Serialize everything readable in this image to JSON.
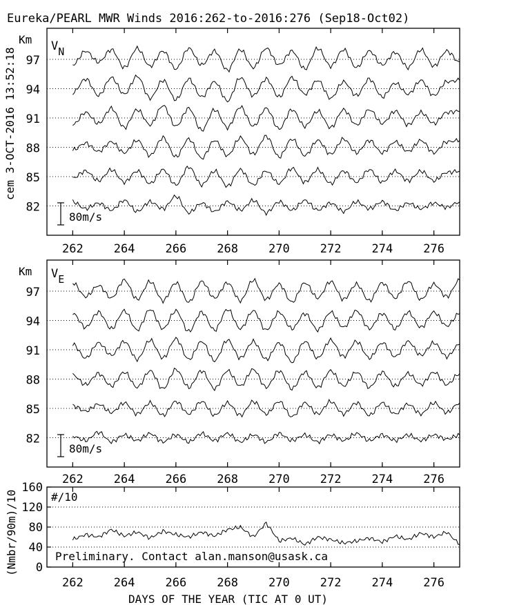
{
  "title": "Eureka/PEARL MWR Winds 2016:262-to-2016:276 (Sep18-Oct02)",
  "side_label": "cem 3-OCT-2016 13:52:18",
  "xlabel": "DAYS OF THE YEAR (TIC AT 0 UT)",
  "colors": {
    "line": "#000000",
    "background": "#ffffff"
  },
  "chart_data": [
    {
      "type": "line",
      "panel": "VN",
      "symbol": "V",
      "subscript": "N",
      "unit_label": "Km",
      "scale_label": "80m/s",
      "x_ticks": [
        262,
        264,
        266,
        268,
        270,
        272,
        274,
        276
      ],
      "xlim": [
        261,
        277
      ],
      "heights_km": [
        97,
        94,
        91,
        88,
        85,
        82
      ],
      "grid": "dotted baseline per height",
      "series": [
        {
          "height": 97,
          "x": [
            262.0,
            262.5,
            263.0,
            263.5,
            264.0,
            264.5,
            265.0,
            265.5,
            266.0,
            266.5,
            267.0,
            267.5,
            268.0,
            268.5,
            269.0,
            269.5,
            270.0,
            270.5,
            271.0,
            271.5,
            272.0,
            272.5,
            273.0,
            273.5,
            274.0,
            274.5,
            275.0,
            275.5,
            276.0,
            276.5,
            277.0
          ],
          "values_ms": [
            -20,
            30,
            -10,
            35,
            -30,
            40,
            -25,
            30,
            -35,
            40,
            -20,
            30,
            -40,
            35,
            -30,
            40,
            -20,
            30,
            -35,
            40,
            -25,
            35,
            -30,
            30,
            -20,
            25,
            -30,
            35,
            -25,
            30,
            -10
          ]
        },
        {
          "height": 94,
          "x": [
            262.0,
            262.5,
            263.0,
            263.5,
            264.0,
            264.5,
            265.0,
            265.5,
            266.0,
            266.5,
            267.0,
            267.5,
            268.0,
            268.5,
            269.0,
            269.5,
            270.0,
            270.5,
            271.0,
            271.5,
            272.0,
            272.5,
            273.0,
            273.5,
            274.0,
            274.5,
            275.0,
            275.5,
            276.0,
            276.5,
            277.0
          ],
          "values_ms": [
            -15,
            35,
            -25,
            40,
            -20,
            45,
            -35,
            30,
            -40,
            35,
            -30,
            25,
            -45,
            40,
            -25,
            35,
            -30,
            40,
            -20,
            30,
            -35,
            25,
            -25,
            35,
            -30,
            20,
            -20,
            30,
            -25,
            25,
            30
          ]
        },
        {
          "height": 91,
          "x": [
            262.0,
            262.5,
            263.0,
            263.5,
            264.0,
            264.5,
            265.0,
            265.5,
            266.0,
            266.5,
            267.0,
            267.5,
            268.0,
            268.5,
            269.0,
            269.5,
            270.0,
            270.5,
            271.0,
            271.5,
            272.0,
            272.5,
            273.0,
            273.5,
            274.0,
            274.5,
            275.0,
            275.5,
            276.0,
            276.5,
            277.0
          ],
          "values_ms": [
            -25,
            20,
            -20,
            35,
            -35,
            30,
            -25,
            45,
            -30,
            35,
            -45,
            30,
            -35,
            40,
            -30,
            35,
            -40,
            30,
            -30,
            25,
            -35,
            30,
            -25,
            30,
            -20,
            25,
            -25,
            20,
            -20,
            20,
            25
          ]
        },
        {
          "height": 88,
          "x": [
            262.0,
            262.5,
            263.0,
            263.5,
            264.0,
            264.5,
            265.0,
            265.5,
            266.0,
            266.5,
            267.0,
            267.5,
            268.0,
            268.5,
            269.0,
            269.5,
            270.0,
            270.5,
            271.0,
            271.5,
            272.0,
            272.5,
            273.0,
            273.5,
            274.0,
            274.5,
            275.0,
            275.5,
            276.0,
            276.5,
            277.0
          ],
          "values_ms": [
            -10,
            15,
            -15,
            20,
            -20,
            25,
            -30,
            35,
            -35,
            30,
            -40,
            25,
            -30,
            35,
            -25,
            40,
            -35,
            30,
            -30,
            25,
            -25,
            30,
            -20,
            25,
            -20,
            20,
            -15,
            25,
            -20,
            20,
            25
          ]
        },
        {
          "height": 85,
          "x": [
            262.0,
            262.5,
            263.0,
            263.5,
            264.0,
            264.5,
            265.0,
            265.5,
            266.0,
            266.5,
            267.0,
            267.5,
            268.0,
            268.5,
            269.0,
            269.5,
            270.0,
            270.5,
            271.0,
            271.5,
            272.0,
            272.5,
            273.0,
            273.5,
            274.0,
            274.5,
            275.0,
            275.5,
            276.0,
            276.5,
            277.0
          ],
          "values_ms": [
            -5,
            20,
            -15,
            25,
            -20,
            20,
            -25,
            25,
            -30,
            35,
            -30,
            20,
            -35,
            25,
            -30,
            20,
            -25,
            30,
            -20,
            25,
            -25,
            20,
            -20,
            25,
            -20,
            20,
            -15,
            20,
            -15,
            15,
            20
          ]
        },
        {
          "height": 82,
          "x": [
            262.0,
            262.5,
            263.0,
            263.5,
            264.0,
            264.5,
            265.0,
            265.5,
            266.0,
            266.5,
            267.0,
            267.5,
            268.0,
            268.5,
            269.0,
            269.5,
            270.0,
            270.5,
            271.0,
            271.5,
            272.0,
            272.5,
            273.0,
            273.5,
            274.0,
            274.5,
            275.0,
            275.5,
            276.0,
            276.5,
            277.0
          ],
          "values_ms": [
            15,
            -10,
            10,
            -15,
            20,
            -20,
            15,
            -10,
            35,
            -25,
            10,
            -20,
            15,
            -15,
            20,
            -25,
            15,
            -15,
            20,
            -15,
            10,
            -20,
            15,
            -10,
            15,
            -15,
            10,
            -10,
            10,
            -5,
            15
          ]
        }
      ]
    },
    {
      "type": "line",
      "panel": "VE",
      "symbol": "V",
      "subscript": "E",
      "unit_label": "Km",
      "scale_label": "80m/s",
      "x_ticks": [
        262,
        264,
        266,
        268,
        270,
        272,
        274,
        276
      ],
      "xlim": [
        261,
        277
      ],
      "heights_km": [
        97,
        94,
        91,
        88,
        85,
        82
      ],
      "grid": "dotted baseline per height",
      "series": [
        {
          "height": 97,
          "x": [
            262.0,
            262.5,
            263.0,
            263.5,
            264.0,
            264.5,
            265.0,
            265.5,
            266.0,
            266.5,
            267.0,
            267.5,
            268.0,
            268.5,
            269.0,
            269.5,
            270.0,
            270.5,
            271.0,
            271.5,
            272.0,
            272.5,
            273.0,
            273.5,
            274.0,
            274.5,
            275.0,
            275.5,
            276.0,
            276.5,
            277.0
          ],
          "values_ms": [
            30,
            -20,
            20,
            -25,
            40,
            -30,
            35,
            -35,
            30,
            -40,
            35,
            -25,
            30,
            -35,
            40,
            -30,
            25,
            -40,
            30,
            -25,
            35,
            -30,
            25,
            -35,
            30,
            -25,
            35,
            -30,
            25,
            -20,
            40
          ]
        },
        {
          "height": 94,
          "x": [
            262.0,
            262.5,
            263.0,
            263.5,
            264.0,
            264.5,
            265.0,
            265.5,
            266.0,
            266.5,
            267.0,
            267.5,
            268.0,
            268.5,
            269.0,
            269.5,
            270.0,
            270.5,
            271.0,
            271.5,
            272.0,
            272.5,
            273.0,
            273.5,
            274.0,
            274.5,
            275.0,
            275.5,
            276.0,
            276.5,
            277.0
          ],
          "values_ms": [
            25,
            -25,
            30,
            -30,
            35,
            -35,
            40,
            -30,
            35,
            -40,
            30,
            -35,
            40,
            -30,
            35,
            -35,
            30,
            -30,
            25,
            -35,
            30,
            -25,
            35,
            -30,
            25,
            -30,
            30,
            -25,
            30,
            -20,
            25
          ]
        },
        {
          "height": 91,
          "x": [
            262.0,
            262.5,
            263.0,
            263.5,
            264.0,
            264.5,
            265.0,
            265.5,
            266.0,
            266.5,
            267.0,
            267.5,
            268.0,
            268.5,
            269.0,
            269.5,
            270.0,
            270.5,
            271.0,
            271.5,
            272.0,
            272.5,
            273.0,
            273.5,
            274.0,
            274.5,
            275.0,
            275.5,
            276.0,
            276.5,
            277.0
          ],
          "values_ms": [
            20,
            -30,
            25,
            -20,
            30,
            -35,
            35,
            -30,
            40,
            -35,
            30,
            -40,
            35,
            -30,
            30,
            -35,
            25,
            -45,
            30,
            -30,
            35,
            -25,
            30,
            -30,
            25,
            -25,
            30,
            -20,
            25,
            -25,
            20
          ]
        },
        {
          "height": 88,
          "x": [
            262.0,
            262.5,
            263.0,
            263.5,
            264.0,
            264.5,
            265.0,
            265.5,
            266.0,
            266.5,
            267.0,
            267.5,
            268.0,
            268.5,
            269.0,
            269.5,
            270.0,
            270.5,
            271.0,
            271.5,
            272.0,
            272.5,
            273.0,
            273.5,
            274.0,
            274.5,
            275.0,
            275.5,
            276.0,
            276.5,
            277.0
          ],
          "values_ms": [
            15,
            -20,
            20,
            -25,
            25,
            -30,
            30,
            -35,
            35,
            -30,
            30,
            -35,
            30,
            -25,
            35,
            -30,
            30,
            -35,
            25,
            -30,
            30,
            -25,
            25,
            -30,
            25,
            -25,
            20,
            -20,
            25,
            -20,
            20
          ]
        },
        {
          "height": 85,
          "x": [
            262.0,
            262.5,
            263.0,
            263.5,
            264.0,
            264.5,
            265.0,
            265.5,
            266.0,
            266.5,
            267.0,
            267.5,
            268.0,
            268.5,
            269.0,
            269.5,
            270.0,
            270.5,
            271.0,
            271.5,
            272.0,
            272.5,
            273.0,
            273.5,
            274.0,
            274.5,
            275.0,
            275.5,
            276.0,
            276.5,
            277.0
          ],
          "values_ms": [
            10,
            -10,
            15,
            -15,
            20,
            -20,
            20,
            -25,
            25,
            -20,
            25,
            -25,
            20,
            -25,
            25,
            -20,
            25,
            -30,
            20,
            -20,
            25,
            -20,
            20,
            -25,
            20,
            -20,
            15,
            -20,
            20,
            -15,
            20
          ]
        },
        {
          "height": 82,
          "x": [
            262.0,
            262.5,
            263.0,
            263.5,
            264.0,
            264.5,
            265.0,
            265.5,
            266.0,
            266.5,
            267.0,
            267.5,
            268.0,
            268.5,
            269.0,
            269.5,
            270.0,
            270.5,
            271.0,
            271.5,
            272.0,
            272.5,
            273.0,
            273.5,
            274.0,
            274.5,
            275.0,
            275.5,
            276.0,
            276.5,
            277.0
          ],
          "values_ms": [
            5,
            -10,
            20,
            -15,
            10,
            -10,
            15,
            -15,
            10,
            -15,
            15,
            -10,
            15,
            -15,
            10,
            -15,
            15,
            -10,
            10,
            -15,
            10,
            -10,
            15,
            -10,
            10,
            -10,
            10,
            -10,
            10,
            -5,
            10
          ]
        }
      ]
    },
    {
      "type": "line",
      "panel": "counts",
      "ylabel": "(Nmbr/90m)/10",
      "unit_label": "#/10",
      "annotation": "Preliminary. Contact alan.manson@usask.ca",
      "x_ticks": [
        262,
        264,
        266,
        268,
        270,
        272,
        274,
        276
      ],
      "xlim": [
        261,
        277
      ],
      "y_ticks": [
        0,
        40,
        80,
        120,
        160
      ],
      "ylim": [
        0,
        160
      ],
      "grid": "dotted horizontal at 40, 80, 120",
      "x": [
        262.0,
        262.5,
        263.0,
        263.5,
        264.0,
        264.5,
        265.0,
        265.5,
        266.0,
        266.5,
        267.0,
        267.5,
        268.0,
        268.5,
        269.0,
        269.5,
        270.0,
        270.5,
        271.0,
        271.5,
        272.0,
        272.5,
        273.0,
        273.5,
        274.0,
        274.5,
        275.0,
        275.5,
        276.0,
        276.5,
        277.0
      ],
      "values": [
        55,
        65,
        60,
        75,
        62,
        70,
        58,
        72,
        65,
        60,
        70,
        62,
        75,
        80,
        60,
        88,
        52,
        58,
        45,
        60,
        55,
        48,
        52,
        58,
        50,
        62,
        55,
        68,
        60,
        70,
        45
      ]
    }
  ]
}
